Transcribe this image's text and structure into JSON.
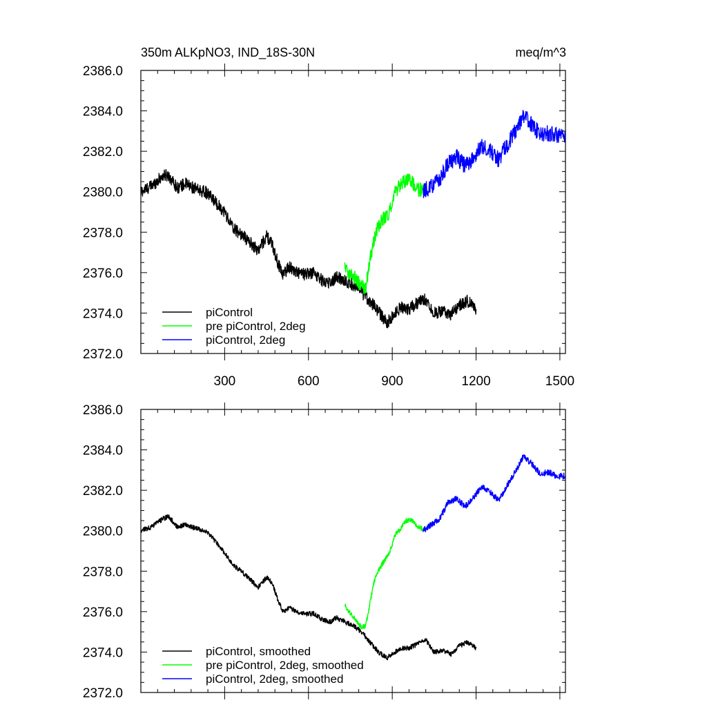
{
  "chart_data": [
    {
      "type": "line",
      "title": "350m ALKpNO3, IND_18S-30N",
      "units": "meq/m^3",
      "xlim": [
        0,
        1520
      ],
      "ylim": [
        2372.0,
        2386.0
      ],
      "yticks": [
        "2372.0",
        "2374.0",
        "2376.0",
        "2378.0",
        "2380.0",
        "2382.0",
        "2384.0",
        "2386.0"
      ],
      "xticks": [
        "300",
        "600",
        "900",
        "1200",
        "1500"
      ],
      "legend_position": "bottom-left",
      "series": [
        {
          "name": "piControl",
          "color": "#000000",
          "x": [
            0,
            40,
            80,
            100,
            130,
            160,
            200,
            230,
            260,
            300,
            330,
            360,
            390,
            420,
            450,
            470,
            490,
            510,
            530,
            560,
            590,
            620,
            650,
            680,
            700,
            730,
            760,
            790,
            820,
            850,
            880,
            900,
            930,
            960,
            990,
            1020,
            1050,
            1080,
            1110,
            1140,
            1170,
            1200
          ],
          "y": [
            2380.0,
            2380.3,
            2380.8,
            2380.8,
            2380.2,
            2380.4,
            2380.1,
            2380.0,
            2379.6,
            2379.0,
            2378.2,
            2377.9,
            2377.5,
            2377.1,
            2377.8,
            2377.4,
            2376.5,
            2375.9,
            2376.3,
            2376.0,
            2375.9,
            2376.0,
            2375.6,
            2375.5,
            2375.8,
            2375.6,
            2375.4,
            2375.0,
            2374.6,
            2374.1,
            2373.5,
            2373.8,
            2374.3,
            2374.2,
            2374.5,
            2374.7,
            2374.0,
            2374.1,
            2373.9,
            2374.4,
            2374.6,
            2374.2
          ],
          "noise": 0.3
        },
        {
          "name": "pre piControl, 2deg",
          "color": "#00ff00",
          "x": [
            730,
            750,
            770,
            790,
            805,
            820,
            835,
            850,
            870,
            890,
            910,
            930,
            950,
            970,
            990,
            1010
          ],
          "y": [
            2376.3,
            2375.9,
            2375.7,
            2375.3,
            2375.2,
            2376.6,
            2377.6,
            2378.3,
            2378.7,
            2379.0,
            2380.0,
            2380.3,
            2380.6,
            2380.5,
            2380.1,
            2380.1
          ],
          "noise": 0.35
        },
        {
          "name": "piControl, 2deg",
          "color": "#0000ff",
          "x": [
            1010,
            1040,
            1070,
            1100,
            1130,
            1160,
            1190,
            1220,
            1250,
            1280,
            1310,
            1340,
            1370,
            1400,
            1430,
            1460,
            1490,
            1520
          ],
          "y": [
            2380.0,
            2380.3,
            2380.6,
            2381.4,
            2381.7,
            2381.3,
            2381.6,
            2382.3,
            2382.0,
            2381.6,
            2382.3,
            2383.0,
            2383.8,
            2383.3,
            2382.8,
            2382.9,
            2382.8,
            2382.6
          ],
          "noise": 0.4
        }
      ]
    },
    {
      "type": "line",
      "xlim": [
        0,
        1520
      ],
      "ylim": [
        2372.0,
        2386.0
      ],
      "yticks": [
        "2372.0",
        "2374.0",
        "2376.0",
        "2378.0",
        "2380.0",
        "2382.0",
        "2384.0",
        "2386.0"
      ],
      "legend_position": "bottom-left",
      "series": [
        {
          "name": "piControl, smoothed",
          "color": "#000000",
          "x": [
            0,
            40,
            80,
            100,
            130,
            160,
            200,
            230,
            260,
            300,
            330,
            360,
            390,
            420,
            450,
            470,
            490,
            510,
            530,
            560,
            590,
            620,
            650,
            680,
            700,
            730,
            760,
            790,
            820,
            850,
            880,
            900,
            930,
            960,
            990,
            1020,
            1050,
            1080,
            1110,
            1140,
            1170,
            1200
          ],
          "y": [
            2380.0,
            2380.2,
            2380.6,
            2380.7,
            2380.2,
            2380.3,
            2380.1,
            2380.0,
            2379.6,
            2378.9,
            2378.3,
            2378.0,
            2377.6,
            2377.2,
            2377.7,
            2377.4,
            2376.6,
            2376.0,
            2376.2,
            2376.0,
            2375.9,
            2375.9,
            2375.6,
            2375.5,
            2375.7,
            2375.5,
            2375.3,
            2375.0,
            2374.5,
            2374.0,
            2373.7,
            2373.9,
            2374.2,
            2374.2,
            2374.4,
            2374.6,
            2374.0,
            2374.1,
            2373.9,
            2374.3,
            2374.5,
            2374.2
          ],
          "noise": 0.12
        },
        {
          "name": "pre piControl, 2deg, smoothed",
          "color": "#00ff00",
          "x": [
            730,
            750,
            770,
            790,
            805,
            820,
            835,
            850,
            870,
            890,
            910,
            930,
            950,
            970,
            990,
            1010
          ],
          "y": [
            2376.3,
            2375.9,
            2375.6,
            2375.2,
            2375.3,
            2376.4,
            2377.5,
            2378.0,
            2378.5,
            2378.9,
            2379.8,
            2380.1,
            2380.5,
            2380.5,
            2380.2,
            2380.1
          ],
          "noise": 0.12
        },
        {
          "name": "piControl, 2deg, smoothed",
          "color": "#0000ff",
          "x": [
            1010,
            1040,
            1070,
            1100,
            1130,
            1160,
            1190,
            1220,
            1250,
            1280,
            1310,
            1340,
            1370,
            1400,
            1430,
            1460,
            1490,
            1520
          ],
          "y": [
            2380.0,
            2380.3,
            2380.6,
            2381.4,
            2381.6,
            2381.2,
            2381.6,
            2382.2,
            2381.9,
            2381.5,
            2382.2,
            2382.9,
            2383.7,
            2383.3,
            2382.8,
            2382.9,
            2382.7,
            2382.7
          ],
          "noise": 0.15
        }
      ]
    }
  ]
}
